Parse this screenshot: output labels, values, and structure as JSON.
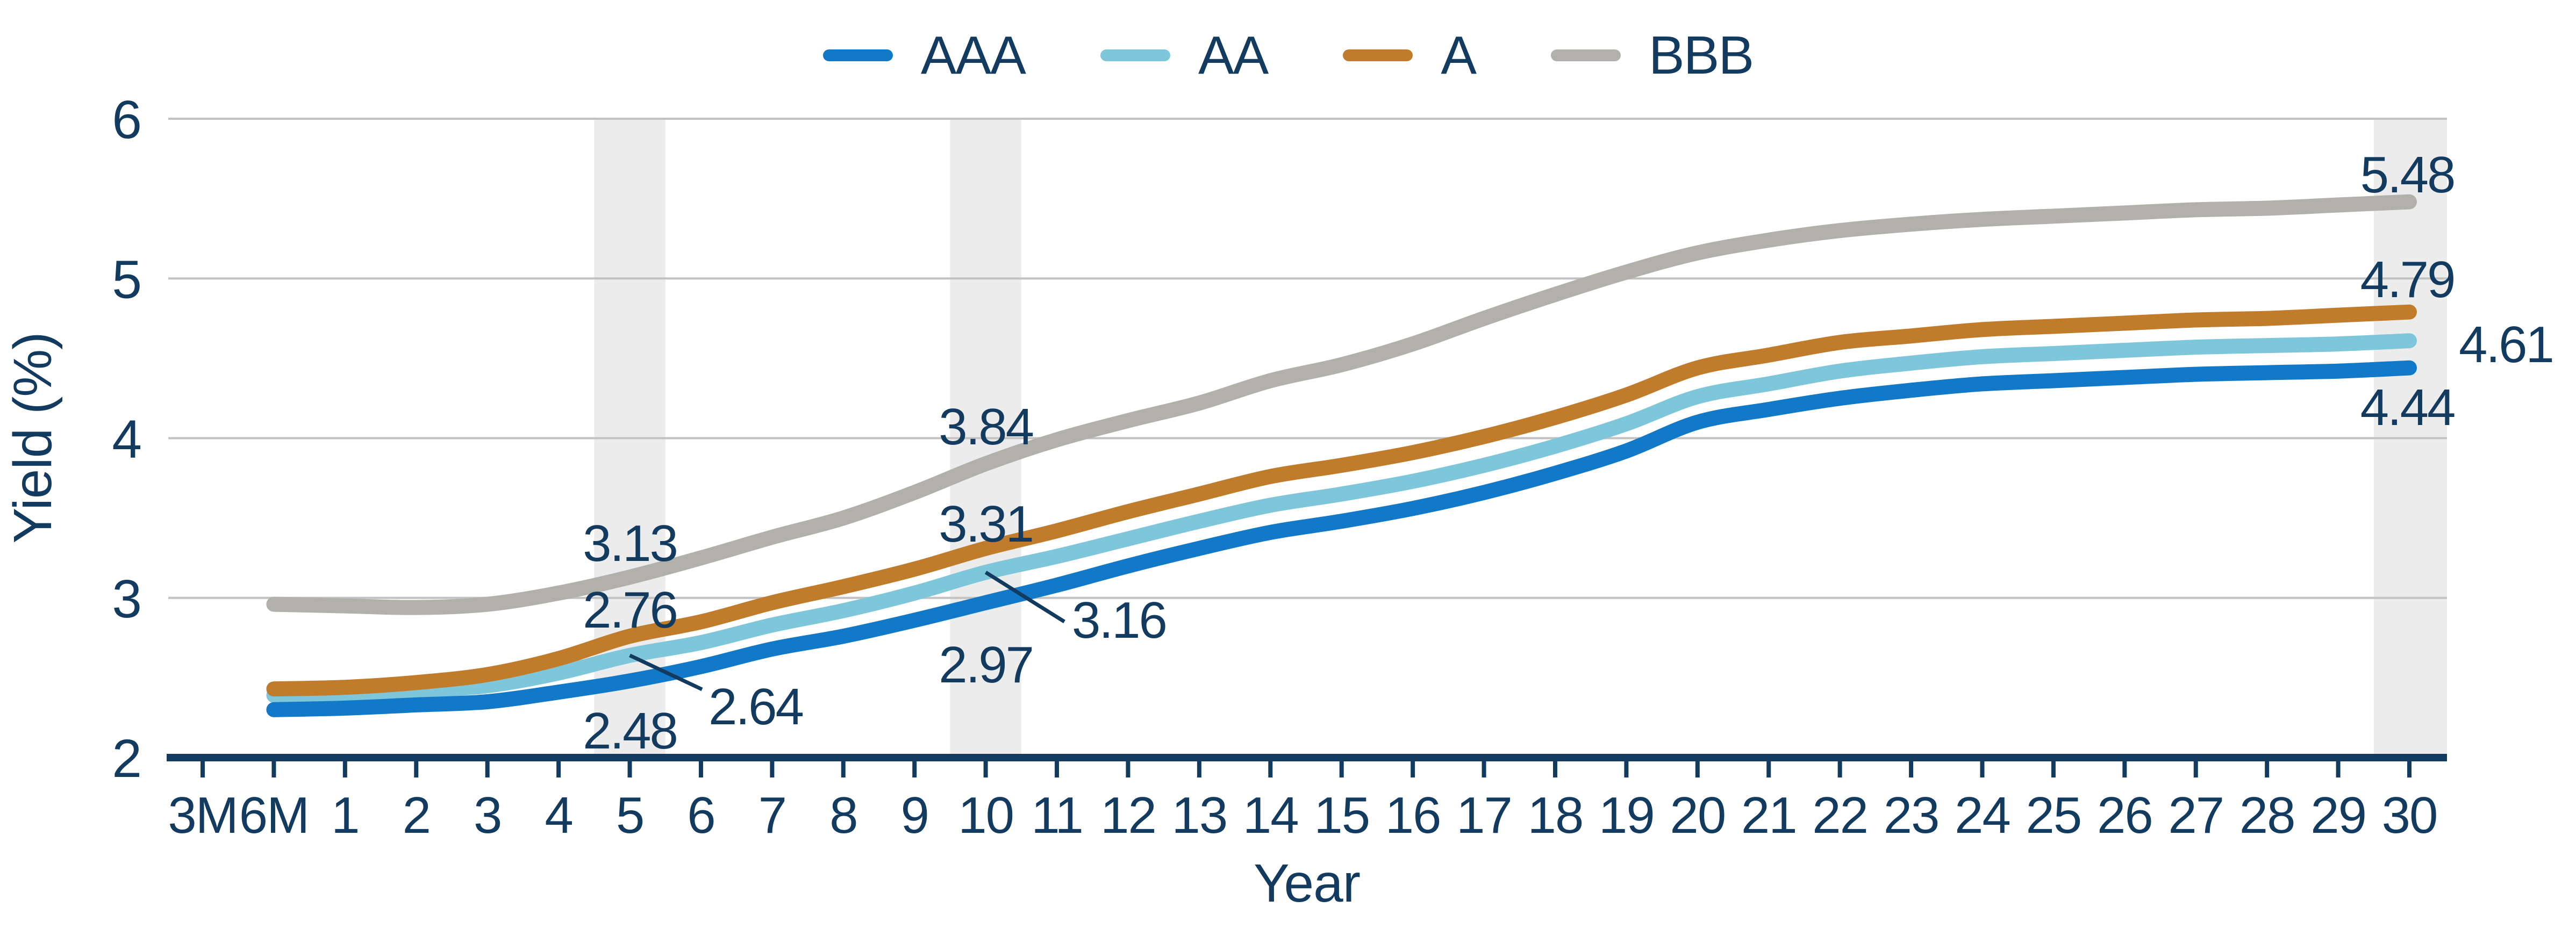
{
  "chart_data": {
    "type": "line",
    "title": "",
    "xlabel": "Year",
    "ylabel": "Yield (%)",
    "ylim": [
      2,
      6
    ],
    "yticks": [
      "2",
      "3",
      "4",
      "5",
      "6"
    ],
    "grid": "horizontal",
    "legend_position": "top",
    "categories": [
      "3M",
      "6M",
      "1",
      "2",
      "3",
      "4",
      "5",
      "6",
      "7",
      "8",
      "9",
      "10",
      "11",
      "12",
      "13",
      "14",
      "15",
      "16",
      "17",
      "18",
      "19",
      "20",
      "21",
      "22",
      "23",
      "24",
      "25",
      "26",
      "27",
      "28",
      "29",
      "30"
    ],
    "highlighted_categories": [
      "5",
      "10",
      "30"
    ],
    "series": [
      {
        "name": "AAA",
        "color": "#1279c8",
        "start_category": "6M",
        "values": [
          2.3,
          2.31,
          2.33,
          2.35,
          2.41,
          2.48,
          2.57,
          2.68,
          2.76,
          2.86,
          2.97,
          3.08,
          3.2,
          3.31,
          3.41,
          3.48,
          3.56,
          3.66,
          3.78,
          3.92,
          4.1,
          4.18,
          4.25,
          4.3,
          4.34,
          4.36,
          4.38,
          4.4,
          4.41,
          4.42,
          4.44
        ]
      },
      {
        "name": "AA",
        "color": "#7ec6da",
        "start_category": "6M",
        "values": [
          2.39,
          2.4,
          2.42,
          2.45,
          2.53,
          2.64,
          2.72,
          2.83,
          2.92,
          3.03,
          3.16,
          3.26,
          3.37,
          3.48,
          3.58,
          3.65,
          3.73,
          3.83,
          3.95,
          4.09,
          4.26,
          4.34,
          4.42,
          4.47,
          4.51,
          4.53,
          4.55,
          4.57,
          4.58,
          4.59,
          4.61
        ]
      },
      {
        "name": "A",
        "color": "#c07b2b",
        "start_category": "6M",
        "values": [
          2.43,
          2.44,
          2.47,
          2.52,
          2.62,
          2.76,
          2.85,
          2.97,
          3.07,
          3.18,
          3.31,
          3.42,
          3.54,
          3.65,
          3.76,
          3.83,
          3.91,
          4.01,
          4.13,
          4.27,
          4.44,
          4.52,
          4.6,
          4.64,
          4.68,
          4.7,
          4.72,
          4.74,
          4.75,
          4.77,
          4.79
        ]
      },
      {
        "name": "BBB",
        "color": "#b1b0ab",
        "start_category": "6M",
        "values": [
          2.96,
          2.95,
          2.94,
          2.96,
          3.03,
          3.13,
          3.25,
          3.38,
          3.5,
          3.66,
          3.84,
          3.99,
          4.11,
          4.22,
          4.36,
          4.46,
          4.59,
          4.75,
          4.9,
          5.04,
          5.16,
          5.24,
          5.3,
          5.34,
          5.37,
          5.39,
          5.41,
          5.43,
          5.44,
          5.46,
          5.48
        ]
      }
    ],
    "annotations": [
      {
        "series": "BBB",
        "category": "5",
        "text": "3.13"
      },
      {
        "series": "A",
        "category": "5",
        "text": "2.76"
      },
      {
        "series": "AA",
        "category": "5",
        "text": "2.64"
      },
      {
        "series": "AAA",
        "category": "5",
        "text": "2.48"
      },
      {
        "series": "BBB",
        "category": "10",
        "text": "3.84"
      },
      {
        "series": "A",
        "category": "10",
        "text": "3.31"
      },
      {
        "series": "AA",
        "category": "10",
        "text": "3.16"
      },
      {
        "series": "AAA",
        "category": "10",
        "text": "2.97"
      },
      {
        "series": "BBB",
        "category": "30",
        "text": "5.48"
      },
      {
        "series": "A",
        "category": "30",
        "text": "4.79"
      },
      {
        "series": "AA",
        "category": "30",
        "text": "4.61"
      },
      {
        "series": "AAA",
        "category": "30",
        "text": "4.44"
      }
    ]
  },
  "legend": {
    "items": [
      {
        "label": "AAA",
        "color": "#1279c8"
      },
      {
        "label": "AA",
        "color": "#7ec6da"
      },
      {
        "label": "A",
        "color": "#c07b2b"
      },
      {
        "label": "BBB",
        "color": "#b1b0ab"
      }
    ]
  },
  "colors": {
    "text": "#133a5f",
    "grid": "#c2c2c2",
    "band": "#ececec",
    "axis": "#133a5f"
  }
}
